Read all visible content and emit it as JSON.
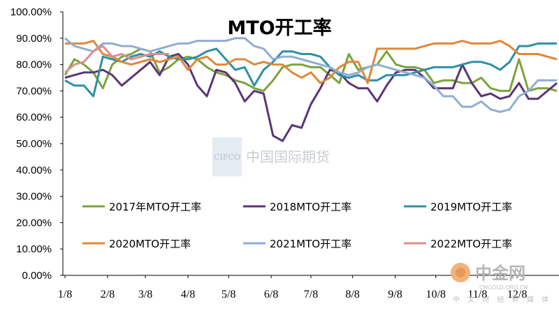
{
  "chart_data": {
    "type": "line",
    "title": "MTO开工率",
    "xlabel": "",
    "ylabel": "",
    "ylim": [
      0,
      100
    ],
    "xlim": [
      1,
      53
    ],
    "y_ticks": [
      "0.00%",
      "10.00%",
      "20.00%",
      "30.00%",
      "40.00%",
      "50.00%",
      "60.00%",
      "70.00%",
      "80.00%",
      "90.00%",
      "100.00%"
    ],
    "x_ticks": [
      {
        "label": "1/8",
        "week": 1
      },
      {
        "label": "2/8",
        "week": 5.5
      },
      {
        "label": "3/8",
        "week": 9.5
      },
      {
        "label": "4/8",
        "week": 14
      },
      {
        "label": "5/8",
        "week": 18.3
      },
      {
        "label": "6/8",
        "week": 22.8
      },
      {
        "label": "7/8",
        "week": 27
      },
      {
        "label": "8/8",
        "week": 31.4
      },
      {
        "label": "9/8",
        "week": 35.9
      },
      {
        "label": "10/8",
        "week": 40.2
      },
      {
        "label": "11/8",
        "week": 44.6
      },
      {
        "label": "12/8",
        "week": 48.8
      }
    ],
    "grid": false,
    "legend_position": "bottom",
    "series": [
      {
        "name": "2017年MTO开工率",
        "color": "#7aa43c",
        "values": [
          76,
          82,
          80,
          77,
          71,
          80,
          83,
          84,
          86,
          85,
          77,
          79,
          82,
          83,
          82,
          79,
          77,
          76,
          74,
          73,
          71,
          70,
          74,
          79,
          80,
          80,
          79,
          79,
          76,
          73,
          84,
          78,
          79,
          80,
          85,
          80,
          79,
          79,
          78,
          73,
          74,
          74,
          73,
          73,
          75,
          71,
          70,
          70,
          82,
          70,
          71,
          71,
          70
        ]
      },
      {
        "name": "2018MTO开工率",
        "color": "#5b3577",
        "values": [
          75,
          76,
          77,
          77,
          78,
          76,
          72,
          75,
          78,
          81,
          76,
          83,
          84,
          80,
          72,
          68,
          78,
          77,
          73,
          66,
          70,
          69,
          53,
          51,
          57,
          56,
          65,
          71,
          78,
          77,
          73,
          71,
          71,
          66,
          72,
          77,
          78,
          78,
          75,
          71,
          71,
          71,
          80,
          73,
          68,
          69,
          67,
          68,
          73,
          67,
          67,
          70,
          73
        ]
      },
      {
        "name": "2019MTO开工率",
        "color": "#2f8fa6",
        "values": [
          74,
          72,
          72,
          68,
          83,
          82,
          81,
          83,
          84,
          83,
          85,
          83,
          82,
          82,
          83,
          85,
          86,
          82,
          78,
          79,
          72,
          78,
          81,
          85,
          85,
          84,
          84,
          83,
          79,
          76,
          75,
          76,
          74,
          74,
          76,
          76,
          76,
          77,
          78,
          79,
          79,
          79,
          80,
          81,
          81,
          80,
          78,
          81,
          87,
          87,
          88,
          88,
          88
        ]
      },
      {
        "name": "2020MTO开工率",
        "color": "#e0873a",
        "values": [
          88,
          88,
          88,
          89,
          84,
          83,
          81,
          80,
          81,
          82,
          81,
          82,
          83,
          78,
          82,
          83,
          80,
          80,
          82,
          82,
          80,
          81,
          80,
          80,
          77,
          75,
          77,
          73,
          75,
          79,
          81,
          81,
          73,
          86,
          86,
          86,
          86,
          86,
          87,
          88,
          88,
          88,
          89,
          88,
          88,
          88,
          89,
          87,
          84,
          84,
          84,
          83,
          82
        ]
      },
      {
        "name": "2021MTO开工率",
        "color": "#8fadd3",
        "values": [
          90,
          87,
          86,
          85,
          88,
          88,
          87,
          87,
          86,
          85,
          86,
          87,
          88,
          88,
          89,
          89,
          89,
          89,
          90,
          90,
          87,
          86,
          82,
          83,
          83,
          82,
          81,
          80,
          79,
          77,
          76,
          77,
          79,
          80,
          79,
          78,
          77,
          76,
          75,
          72,
          68,
          68,
          64,
          64,
          66,
          63,
          62,
          63,
          68,
          70,
          74,
          74,
          74
        ]
      },
      {
        "name": "2022MTO开工率",
        "color": "#d9908f",
        "values": [
          77,
          80,
          81,
          85,
          87,
          83,
          84,
          82,
          83,
          84,
          84,
          84
        ]
      }
    ]
  },
  "watermark": {
    "logo_text": "CIFCO",
    "text": "中国国际期货"
  },
  "corner_logo": {
    "name": "中金网",
    "url": "CNGOLD.ORG.CN",
    "tagline": "中 文 财 经 新 媒 体"
  }
}
